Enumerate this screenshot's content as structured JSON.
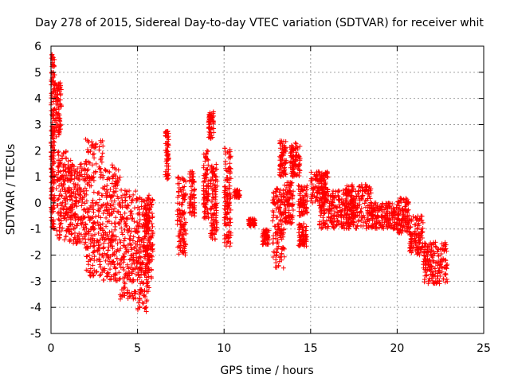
{
  "chart_data": {
    "type": "scatter",
    "title": "Day 278 of 2015, Sidereal Day-to-day VTEC variation (SDTVAR) for receiver whit",
    "xlabel": "GPS time / hours",
    "ylabel": "SDTVAR / TECUs",
    "xlim": [
      0,
      25
    ],
    "ylim": [
      -5,
      6
    ],
    "xticks": [
      0,
      5,
      10,
      15,
      20,
      25
    ],
    "yticks": [
      -5,
      -4,
      -3,
      -2,
      -1,
      0,
      1,
      2,
      3,
      4,
      5,
      6
    ],
    "grid": true,
    "marker": "+",
    "color": "#ff0000",
    "clusters": [
      {
        "x": [
          0.0,
          0.2
        ],
        "y": [
          -1.0,
          5.7
        ]
      },
      {
        "x": [
          0.2,
          0.6
        ],
        "y": [
          2.5,
          4.6
        ]
      },
      {
        "x": [
          0.3,
          1.2
        ],
        "y": [
          -1.5,
          2.0
        ]
      },
      {
        "x": [
          1.0,
          2.0
        ],
        "y": [
          -1.6,
          1.5
        ]
      },
      {
        "x": [
          2.0,
          3.0
        ],
        "y": [
          -2.8,
          2.5
        ]
      },
      {
        "x": [
          3.0,
          4.0
        ],
        "y": [
          -3.0,
          1.5
        ]
      },
      {
        "x": [
          4.0,
          5.0
        ],
        "y": [
          -3.7,
          0.5
        ]
      },
      {
        "x": [
          5.0,
          5.7
        ],
        "y": [
          -4.2,
          0.3
        ]
      },
      {
        "x": [
          5.4,
          5.9
        ],
        "y": [
          -3.0,
          0.2
        ]
      },
      {
        "x": [
          6.6,
          6.8
        ],
        "y": [
          0.9,
          2.8
        ]
      },
      {
        "x": [
          7.3,
          7.8
        ],
        "y": [
          -2.0,
          1.0
        ]
      },
      {
        "x": [
          8.0,
          8.3
        ],
        "y": [
          -0.5,
          1.2
        ]
      },
      {
        "x": [
          8.8,
          9.1
        ],
        "y": [
          -0.6,
          2.0
        ]
      },
      {
        "x": [
          9.1,
          9.4
        ],
        "y": [
          2.4,
          3.5
        ]
      },
      {
        "x": [
          9.2,
          9.6
        ],
        "y": [
          -1.4,
          1.5
        ]
      },
      {
        "x": [
          10.0,
          10.4
        ],
        "y": [
          -1.7,
          2.1
        ]
      },
      {
        "x": [
          10.6,
          10.9
        ],
        "y": [
          0.2,
          0.5
        ]
      },
      {
        "x": [
          11.4,
          11.8
        ],
        "y": [
          -0.9,
          -0.6
        ]
      },
      {
        "x": [
          12.2,
          12.6
        ],
        "y": [
          -1.6,
          -1.0
        ]
      },
      {
        "x": [
          12.8,
          13.5
        ],
        "y": [
          -2.5,
          0.6
        ]
      },
      {
        "x": [
          13.2,
          13.6
        ],
        "y": [
          1.0,
          2.4
        ]
      },
      {
        "x": [
          13.5,
          14.0
        ],
        "y": [
          -0.8,
          0.8
        ]
      },
      {
        "x": [
          13.8,
          14.4
        ],
        "y": [
          1.0,
          2.3
        ]
      },
      {
        "x": [
          14.3,
          14.8
        ],
        "y": [
          -1.7,
          -0.8
        ]
      },
      {
        "x": [
          14.3,
          14.8
        ],
        "y": [
          -0.5,
          0.7
        ]
      },
      {
        "x": [
          15.0,
          16.0
        ],
        "y": [
          0.0,
          1.2
        ]
      },
      {
        "x": [
          15.5,
          17.5
        ],
        "y": [
          -1.0,
          0.5
        ]
      },
      {
        "x": [
          17.0,
          18.5
        ],
        "y": [
          -1.0,
          0.7
        ]
      },
      {
        "x": [
          18.5,
          20.0
        ],
        "y": [
          -1.0,
          0.0
        ]
      },
      {
        "x": [
          20.0,
          20.7
        ],
        "y": [
          -1.2,
          0.2
        ]
      },
      {
        "x": [
          20.7,
          21.5
        ],
        "y": [
          -2.0,
          -0.5
        ]
      },
      {
        "x": [
          21.5,
          22.9
        ],
        "y": [
          -3.1,
          -1.5
        ]
      }
    ]
  }
}
